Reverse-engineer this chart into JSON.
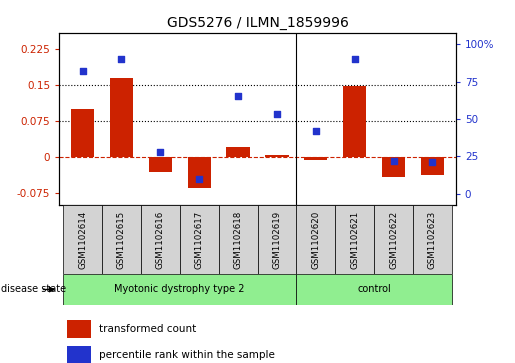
{
  "title": "GDS5276 / ILMN_1859996",
  "samples": [
    "GSM1102614",
    "GSM1102615",
    "GSM1102616",
    "GSM1102617",
    "GSM1102618",
    "GSM1102619",
    "GSM1102620",
    "GSM1102621",
    "GSM1102622",
    "GSM1102623"
  ],
  "transformed_count": [
    0.1,
    0.165,
    -0.03,
    -0.065,
    0.022,
    0.005,
    -0.005,
    0.148,
    -0.042,
    -0.038
  ],
  "percentile_rank": [
    82,
    90,
    28,
    10,
    65,
    53,
    42,
    90,
    22,
    21
  ],
  "group1_label": "Myotonic dystrophy type 2",
  "group1_count": 6,
  "group2_label": "control",
  "group2_count": 4,
  "group_color": "#90EE90",
  "sample_box_color": "#D3D3D3",
  "ylim_left": [
    -0.1,
    0.26
  ],
  "ylim_right": [
    -7.69,
    107.69
  ],
  "yticks_left": [
    -0.075,
    0,
    0.075,
    0.15,
    0.225
  ],
  "yticks_right": [
    0,
    25,
    50,
    75,
    100
  ],
  "ytick_labels_right": [
    "0",
    "25",
    "50",
    "75",
    "100%"
  ],
  "hlines": [
    0.075,
    0.15
  ],
  "bar_color": "#CC2200",
  "dot_color": "#2233CC",
  "zero_line_color": "#CC2200",
  "background_color": "#ffffff",
  "legend_items": [
    "transformed count",
    "percentile rank within the sample"
  ],
  "disease_state_label": "disease state",
  "separator_index": 5.5,
  "title_fontsize": 10,
  "tick_fontsize": 7.5,
  "label_fontsize": 7.5
}
